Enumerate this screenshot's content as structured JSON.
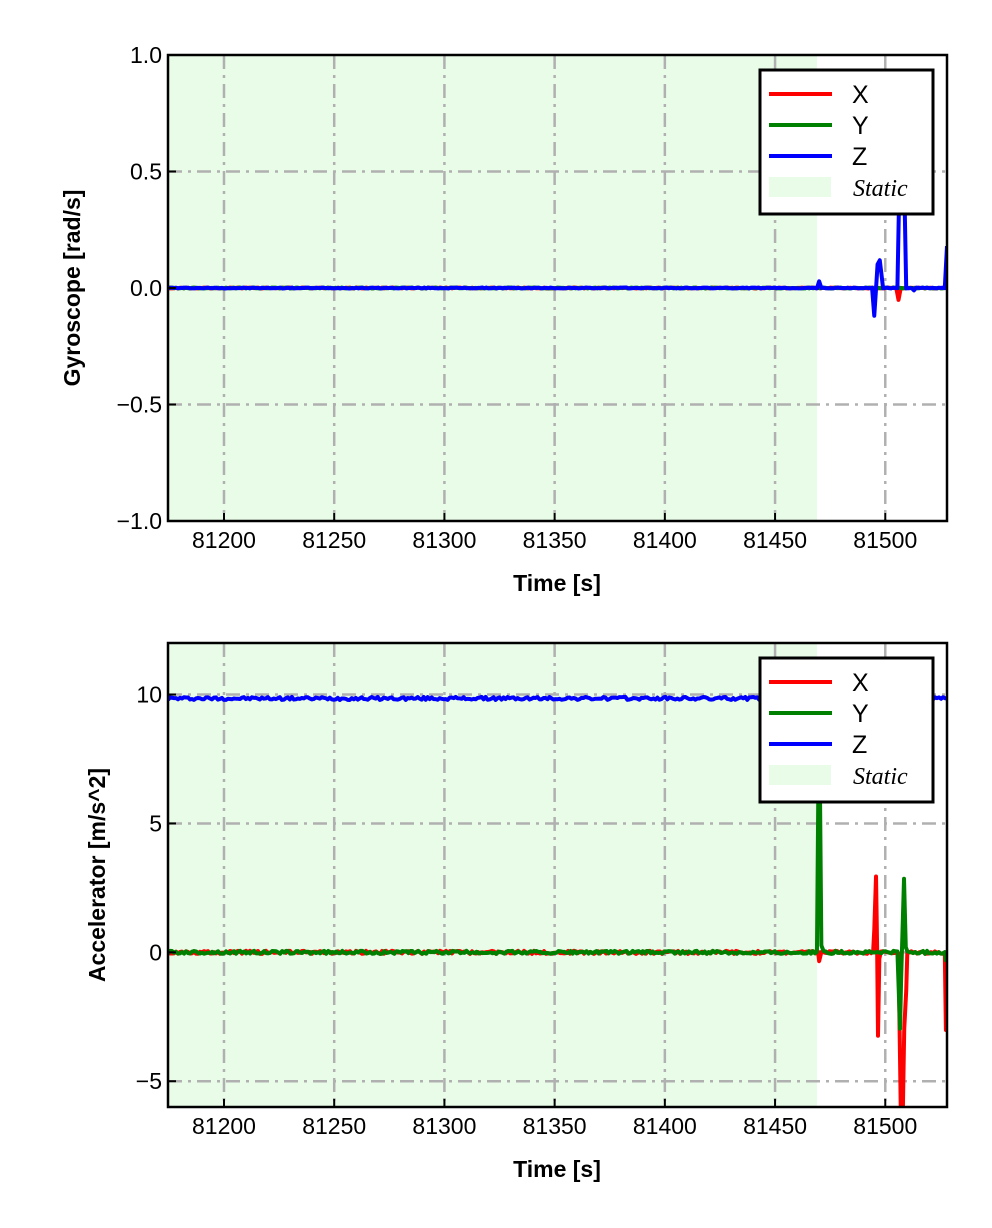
{
  "colors": {
    "X": "#ff0000",
    "Y": "#008000",
    "Z": "#0000ff",
    "static": "#e8fce8",
    "grid": "#b0b0b0"
  },
  "chart_data": [
    {
      "type": "line",
      "xlabel": "Time [s]",
      "ylabel": "Gyroscope [rad/s]",
      "xlim": [
        81174.6,
        81528
      ],
      "ylim": [
        -1.0,
        1.0
      ],
      "xticks": [
        81200,
        81250,
        81300,
        81350,
        81400,
        81450,
        81500
      ],
      "yticks": [
        -1.0,
        -0.5,
        0.0,
        0.5,
        1.0
      ],
      "ytick_labels": [
        "−1.0",
        "−0.5",
        "0.0",
        "0.5",
        "1.0"
      ],
      "grid": true,
      "legend_position": "top-right",
      "static_region": [
        81174.6,
        81469
      ],
      "legend": [
        "X",
        "Y",
        "Z",
        "Static"
      ],
      "series": [
        {
          "name": "X",
          "x": [
            81174.6,
            81505,
            81506,
            81507,
            81528
          ],
          "y": [
            0,
            0,
            -0.05,
            0,
            0
          ]
        },
        {
          "name": "Y",
          "x": [
            81174.6,
            81528
          ],
          "y": [
            0,
            0
          ]
        },
        {
          "name": "Z",
          "x": [
            81174.6,
            81469,
            81470,
            81471,
            81494,
            81495,
            81496.5,
            81497.5,
            81499,
            81505.5,
            81506.5,
            81507.5,
            81508.5,
            81509.5,
            81512,
            81513,
            81514,
            81527,
            81528
          ],
          "y": [
            0,
            0,
            0.03,
            0,
            0,
            -0.12,
            0.1,
            0.12,
            0,
            0,
            0.5,
            0.45,
            0.5,
            0,
            0,
            -0.01,
            0,
            0,
            0.18
          ]
        }
      ]
    },
    {
      "type": "line",
      "xlabel": "Time [s]",
      "ylabel": "Accelerator [m/s^2]",
      "xlim": [
        81174.6,
        81528
      ],
      "ylim": [
        -6,
        12
      ],
      "xticks": [
        81200,
        81250,
        81300,
        81350,
        81400,
        81450,
        81500
      ],
      "yticks": [
        -5,
        0,
        5,
        10
      ],
      "ytick_labels": [
        "−5",
        "0",
        "5",
        "10"
      ],
      "grid": true,
      "legend_position": "top-right",
      "static_region": [
        81174.6,
        81469
      ],
      "legend": [
        "X",
        "Y",
        "Z",
        "Static"
      ],
      "series": [
        {
          "name": "X",
          "x": [
            81174.6,
            81469.5,
            81470,
            81471,
            81494.5,
            81495,
            81495.8,
            81496.3,
            81496.7,
            81497.3,
            81498,
            81506,
            81507,
            81508,
            81508.6,
            81509.5,
            81510,
            81527,
            81527.5,
            81528
          ],
          "y": [
            0,
            0,
            -0.3,
            0,
            0,
            0.8,
            3.0,
            0.2,
            -3.2,
            -0.2,
            0,
            0,
            -6,
            -6,
            -3,
            -1.5,
            0,
            0,
            -3,
            -3
          ]
        },
        {
          "name": "Y",
          "x": [
            81174.6,
            81469,
            81469.8,
            81470.2,
            81471,
            81472,
            81505.5,
            81506.7,
            81507.2,
            81508.5,
            81509.3,
            81510,
            81527,
            81527.5,
            81528
          ],
          "y": [
            0,
            0,
            8,
            8,
            0.3,
            0,
            0,
            -3,
            -1,
            2.9,
            0.2,
            0,
            0,
            -0.3,
            -0.3
          ]
        },
        {
          "name": "Z",
          "x": [
            81174.6,
            81528
          ],
          "y": [
            9.85,
            9.85
          ]
        }
      ]
    }
  ]
}
